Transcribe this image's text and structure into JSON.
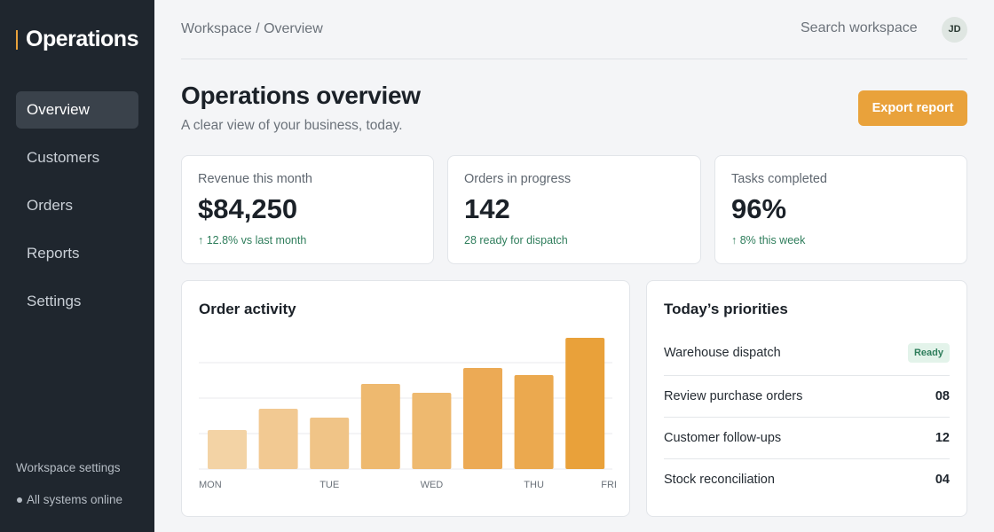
{
  "sidebar": {
    "brand": "Operations",
    "nav": [
      "Overview",
      "Customers",
      "Orders",
      "Reports",
      "Settings"
    ],
    "footer": {
      "settings": "Workspace settings",
      "status": "All systems online"
    }
  },
  "header": {
    "breadcrumb": "Workspace / Overview",
    "search": "Search workspace",
    "avatar": "JD"
  },
  "page": {
    "title": "Operations overview",
    "subtitle": "A clear view of your business, today.",
    "button": "Export report"
  },
  "kpis": [
    {
      "label": "Revenue this month",
      "value": "$84,250",
      "note": "↑ 12.8% vs last month"
    },
    {
      "label": "Orders in progress",
      "value": "142",
      "note": "28 ready for dispatch"
    },
    {
      "label": "Tasks completed",
      "value": "96%",
      "note": "↑ 8% this week"
    }
  ],
  "chart_data": {
    "type": "bar",
    "title": "Order activity",
    "categories": [
      "MON",
      null,
      "TUE",
      null,
      "WED",
      null,
      "THU",
      "FRI"
    ],
    "values": [
      11,
      17,
      14.5,
      24,
      21.5,
      28.5,
      26.5,
      37
    ],
    "colors": [
      "#f3d3a5",
      "#f2c992",
      "#f0c487",
      "#eeb96f",
      "#eeb96f",
      "#ecaa55",
      "#eba94f",
      "#e9a13a"
    ],
    "ylim": [
      0,
      37.5
    ],
    "yticks": [
      0,
      10,
      20,
      30
    ],
    "grid": true
  },
  "priorities": {
    "title": "Today’s priorities",
    "rows": [
      {
        "label": "Warehouse dispatch",
        "badge": "Ready"
      },
      {
        "label": "Review purchase orders",
        "value": "08"
      },
      {
        "label": "Customer follow-ups",
        "value": "12"
      },
      {
        "label": "Stock reconciliation",
        "value": "04"
      }
    ]
  }
}
